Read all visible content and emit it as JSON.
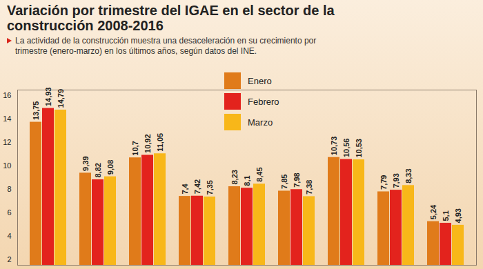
{
  "chart_data": {
    "type": "bar",
    "title": "Variación por trimestre del IGAE en el sector de la construcción 2008-2016",
    "subtitle": "La actividad de la construcción muestra una desaceleración en su crecimiento por trimestre (enero-marzo) en los últimos años, según datos del INE.",
    "categories": [
      null,
      null,
      null,
      null,
      null,
      null,
      null,
      null,
      null
    ],
    "series": [
      {
        "name": "Enero",
        "color": "#e07b1a",
        "values": [
          13.75,
          9.39,
          10.7,
          7.4,
          8.23,
          7.85,
          10.73,
          7.79,
          5.24
        ],
        "value_labels": [
          "13,75",
          "9,39",
          "10,7",
          "7,4",
          "8,23",
          "7,85",
          "10,73",
          "7,79",
          "5,24"
        ]
      },
      {
        "name": "Febrero",
        "color": "#e3231d",
        "values": [
          14.93,
          8.82,
          10.92,
          7.42,
          8.1,
          7.98,
          10.56,
          7.93,
          5.1
        ],
        "value_labels": [
          "14,93",
          "8,82",
          "10,92",
          "7,42",
          "8,1",
          "7,98",
          "10,56",
          "7,93",
          "5,1"
        ]
      },
      {
        "name": "Marzo",
        "color": "#f8b719",
        "values": [
          14.79,
          9.08,
          11.05,
          7.35,
          8.45,
          7.38,
          10.53,
          8.33,
          4.93
        ],
        "value_labels": [
          "14,79",
          "9,08",
          "11,05",
          "7,35",
          "8,45",
          "7,38",
          "10,53",
          "8,33",
          "4,93"
        ]
      }
    ],
    "ylim": [
      1.5,
      16.5
    ],
    "yticks": [
      2,
      4,
      6,
      8,
      10,
      12,
      14,
      16
    ],
    "grid": false,
    "data_labels": true,
    "legend": "top",
    "tick_labels": "y"
  }
}
